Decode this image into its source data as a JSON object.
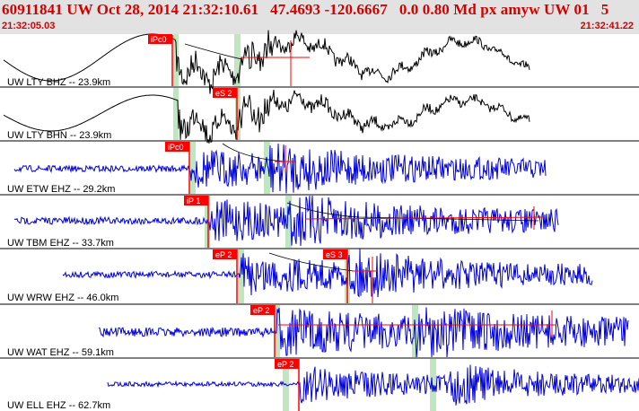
{
  "header": {
    "title": "60911841 UW Oct 28, 2014 21:32:10.61   47.4693 -120.6667   0.0 0.80 Md px amyw UW 01   5",
    "time_start": "21:32:05.03",
    "time_end": "21:32:41.22"
  },
  "colors": {
    "header_bg": "#e2e2e2",
    "header_text": "#d40000",
    "pick_red": "#ff0000",
    "window_green": "#bfe6bf",
    "trace_black": "#000000",
    "trace_blue": "#0000dd"
  },
  "traces": [
    {
      "label": "UW LTY BHZ -- 23.9km",
      "color": "black",
      "phase": "iPc0",
      "waveform": "long-period"
    },
    {
      "label": "UW LTY BHN -- 23.9km",
      "color": "black",
      "phase": "eS 2",
      "waveform": "long-period"
    },
    {
      "label": "UW ETW EHZ -- 29.2km",
      "color": "blue",
      "phase": "iPc0",
      "waveform": "short-period"
    },
    {
      "label": "UW TBM EHZ -- 33.7km",
      "color": "blue",
      "phase": "iP 1",
      "waveform": "short-period"
    },
    {
      "label": "UW WRW EHZ -- 46.0km",
      "color": "blue",
      "phase": "eP 2",
      "phase2": "eS 3",
      "waveform": "short-period"
    },
    {
      "label": "UW WAT EHZ -- 59.1km",
      "color": "blue",
      "phase": "eP 2",
      "waveform": "short-period"
    },
    {
      "label": "UW ELL EHZ -- 62.7km",
      "color": "blue",
      "phase": "eP 2",
      "waveform": "short-period"
    }
  ]
}
